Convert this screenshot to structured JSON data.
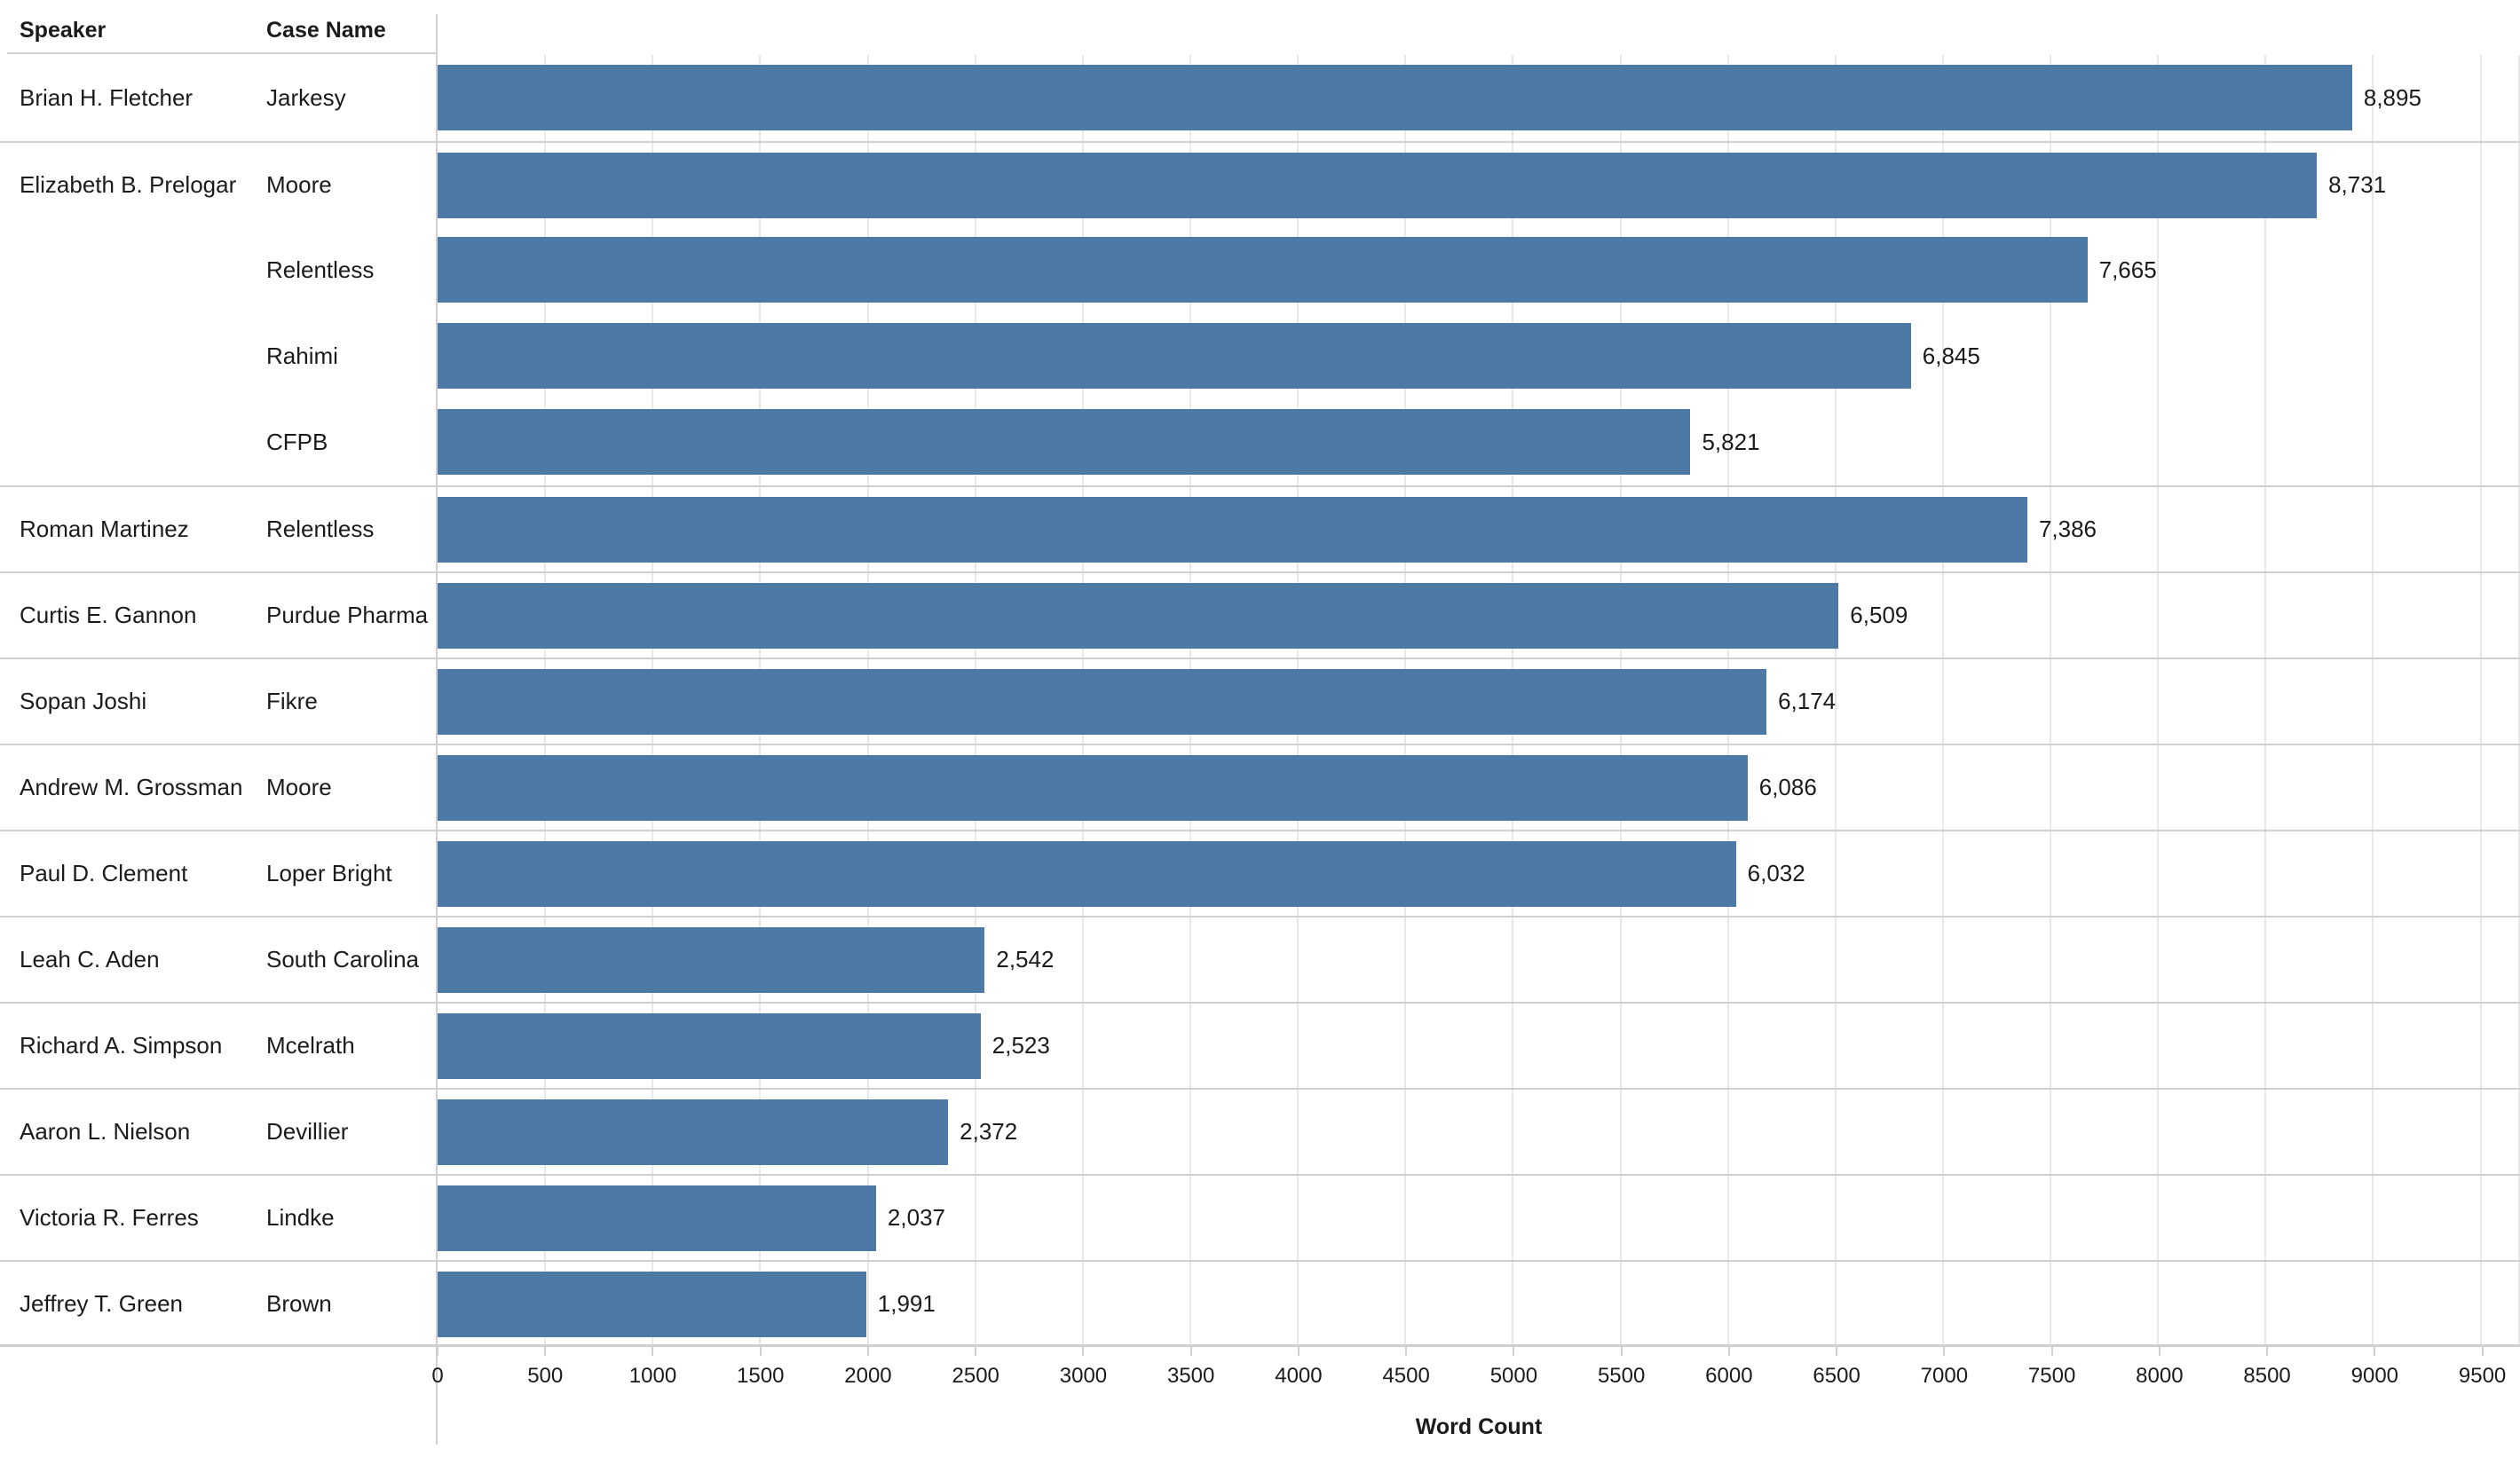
{
  "table_headers": {
    "speaker": "Speaker",
    "case_name": "Case Name"
  },
  "chart_data": {
    "type": "bar",
    "orientation": "horizontal",
    "xlabel": "Word Count",
    "bar_color": "#4d79a7",
    "x_axis": {
      "min": 0,
      "tick_interval": 500,
      "axis_end": 9675,
      "ticks": [
        0,
        500,
        1000,
        1500,
        2000,
        2500,
        3000,
        3500,
        4000,
        4500,
        5000,
        5500,
        6000,
        6500,
        7000,
        7500,
        8000,
        8500,
        9000,
        9500
      ]
    },
    "grid": "vertical-on",
    "rows": [
      {
        "speaker": "Brian H. Fletcher",
        "case": "Jarkesy",
        "value": 8895,
        "value_label": "8,895"
      },
      {
        "speaker": "Elizabeth B. Prelogar",
        "case": "Moore",
        "value": 8731,
        "value_label": "8,731"
      },
      {
        "speaker": "",
        "case": "Relentless",
        "value": 7665,
        "value_label": "7,665"
      },
      {
        "speaker": "",
        "case": "Rahimi",
        "value": 6845,
        "value_label": "6,845"
      },
      {
        "speaker": "",
        "case": "CFPB",
        "value": 5821,
        "value_label": "5,821"
      },
      {
        "speaker": "Roman Martinez",
        "case": "Relentless",
        "value": 7386,
        "value_label": "7,386"
      },
      {
        "speaker": "Curtis E. Gannon",
        "case": "Purdue Pharma",
        "value": 6509,
        "value_label": "6,509"
      },
      {
        "speaker": "Sopan Joshi",
        "case": "Fikre",
        "value": 6174,
        "value_label": "6,174"
      },
      {
        "speaker": "Andrew M. Grossman",
        "case": "Moore",
        "value": 6086,
        "value_label": "6,086"
      },
      {
        "speaker": "Paul D. Clement",
        "case": "Loper Bright",
        "value": 6032,
        "value_label": "6,032"
      },
      {
        "speaker": "Leah C. Aden",
        "case": "South Carolina",
        "value": 2542,
        "value_label": "2,542"
      },
      {
        "speaker": "Richard A. Simpson",
        "case": "Mcelrath",
        "value": 2523,
        "value_label": "2,523"
      },
      {
        "speaker": "Aaron L. Nielson",
        "case": "Devillier",
        "value": 2372,
        "value_label": "2,372"
      },
      {
        "speaker": "Victoria R. Ferres",
        "case": "Lindke",
        "value": 2037,
        "value_label": "2,037"
      },
      {
        "speaker": "Jeffrey T. Green",
        "case": "Brown",
        "value": 1991,
        "value_label": "1,991"
      }
    ]
  },
  "colors": {
    "bar": "#4d79a7",
    "group_separator": "#d0d0d0",
    "gridline": "#e8e8e8",
    "axis_line": "#d0d0d0",
    "text": "#1b1b1b",
    "background": "#ffffff"
  }
}
